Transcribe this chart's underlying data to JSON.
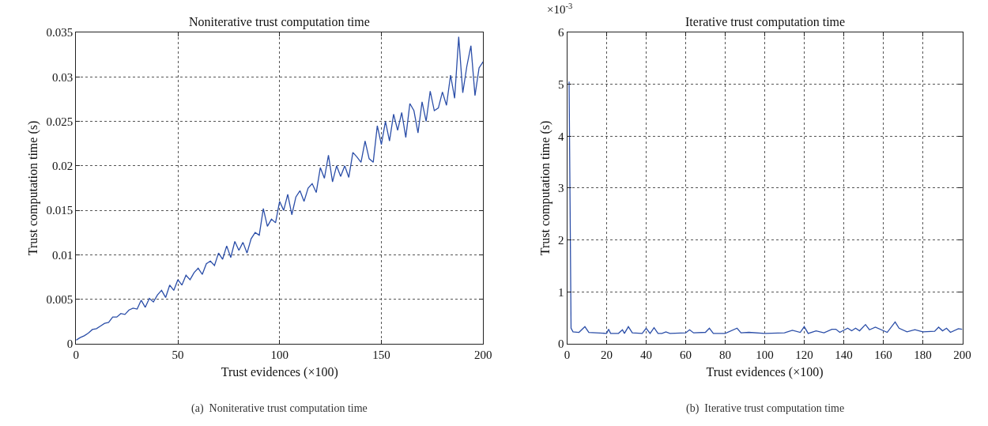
{
  "chart_data": [
    {
      "type": "line",
      "title": "Noniterative trust computation time",
      "xlabel": "Trust evidences (×100)",
      "ylabel": "Trust computation time (s)",
      "x": [
        0,
        2,
        4,
        6,
        8,
        10,
        12,
        14,
        16,
        18,
        20,
        22,
        24,
        26,
        28,
        30,
        32,
        34,
        36,
        38,
        40,
        42,
        44,
        46,
        48,
        50,
        52,
        54,
        56,
        58,
        60,
        62,
        64,
        66,
        68,
        70,
        72,
        74,
        76,
        78,
        80,
        82,
        84,
        86,
        88,
        90,
        92,
        94,
        96,
        98,
        100,
        102,
        104,
        106,
        108,
        110,
        112,
        114,
        116,
        118,
        120,
        122,
        124,
        126,
        128,
        130,
        132,
        134,
        136,
        138,
        140,
        142,
        144,
        146,
        148,
        150,
        152,
        154,
        156,
        158,
        160,
        162,
        164,
        166,
        168,
        170,
        172,
        174,
        176,
        178,
        180,
        182,
        184,
        186,
        188,
        190,
        192,
        194,
        196,
        198,
        200
      ],
      "series": [
        {
          "color": "#2b4ea8",
          "values": [
            0.0004,
            0.0007,
            0.0009,
            0.0012,
            0.0016,
            0.0017,
            0.002,
            0.0023,
            0.0024,
            0.003,
            0.003,
            0.0034,
            0.0033,
            0.0038,
            0.004,
            0.0039,
            0.0049,
            0.0041,
            0.0051,
            0.0047,
            0.0055,
            0.006,
            0.0052,
            0.0066,
            0.006,
            0.0072,
            0.0066,
            0.0077,
            0.0072,
            0.008,
            0.0085,
            0.0078,
            0.009,
            0.0093,
            0.0088,
            0.0102,
            0.0095,
            0.011,
            0.0097,
            0.0115,
            0.0105,
            0.0114,
            0.0102,
            0.0118,
            0.0125,
            0.0122,
            0.0152,
            0.0132,
            0.014,
            0.0136,
            0.016,
            0.015,
            0.0168,
            0.0145,
            0.0165,
            0.0172,
            0.016,
            0.0175,
            0.018,
            0.017,
            0.0198,
            0.0186,
            0.0212,
            0.0182,
            0.02,
            0.0188,
            0.02,
            0.0187,
            0.0215,
            0.021,
            0.0204,
            0.0228,
            0.0208,
            0.0204,
            0.0245,
            0.0224,
            0.025,
            0.0228,
            0.0258,
            0.024,
            0.026,
            0.0232,
            0.027,
            0.0262,
            0.0237,
            0.0272,
            0.025,
            0.0284,
            0.0262,
            0.0265,
            0.0283,
            0.0268,
            0.0302,
            0.0276,
            0.0345,
            0.0282,
            0.0312,
            0.0335,
            0.0279,
            0.031,
            0.0317
          ]
        }
      ],
      "xlim": [
        0,
        200
      ],
      "xticks": [
        0,
        50,
        100,
        150,
        200
      ],
      "ylim": [
        0,
        0.035
      ],
      "yticks": [
        0,
        0.005,
        0.01,
        0.015,
        0.02,
        0.025,
        0.03,
        0.035
      ],
      "grid": true,
      "marker": "none",
      "line_style": "solid",
      "annotations": [
        "(a)  Noniterative trust computation time"
      ]
    },
    {
      "type": "line",
      "title": "Iterative trust computation time",
      "xlabel": "Trust evidences (×100)",
      "ylabel": "Trust computation time (s)",
      "x": [
        1,
        2,
        3,
        6,
        9,
        11,
        20,
        21,
        22,
        26,
        28,
        29,
        31,
        33,
        38,
        40,
        42,
        44,
        46,
        48,
        50,
        52,
        60,
        62,
        64,
        70,
        72,
        74,
        80,
        86,
        88,
        92,
        100,
        110,
        114,
        118,
        120,
        122,
        126,
        130,
        134,
        136,
        138,
        142,
        144,
        146,
        148,
        151,
        153,
        156,
        162,
        166,
        168,
        172,
        176,
        180,
        186,
        188,
        190,
        192,
        194,
        198,
        200
      ],
      "series": [
        {
          "color": "#2b4ea8",
          "values": [
            5.05,
            0.3,
            0.23,
            0.22,
            0.33,
            0.22,
            0.2,
            0.28,
            0.2,
            0.2,
            0.27,
            0.2,
            0.33,
            0.21,
            0.2,
            0.3,
            0.2,
            0.31,
            0.2,
            0.2,
            0.23,
            0.2,
            0.21,
            0.27,
            0.21,
            0.22,
            0.3,
            0.2,
            0.2,
            0.3,
            0.21,
            0.22,
            0.2,
            0.21,
            0.26,
            0.22,
            0.33,
            0.2,
            0.25,
            0.21,
            0.28,
            0.28,
            0.22,
            0.3,
            0.25,
            0.3,
            0.25,
            0.37,
            0.27,
            0.32,
            0.22,
            0.42,
            0.3,
            0.23,
            0.27,
            0.23,
            0.24,
            0.32,
            0.25,
            0.3,
            0.22,
            0.29,
            0.28
          ]
        }
      ],
      "xlim": [
        0,
        200
      ],
      "xticks": [
        0,
        20,
        40,
        60,
        80,
        100,
        120,
        140,
        160,
        180,
        200
      ],
      "ylim": [
        0,
        6
      ],
      "yticks": [
        0,
        1,
        2,
        3,
        4,
        5,
        6
      ],
      "grid": true,
      "marker": "none",
      "line_style": "solid",
      "annotations": [
        "×10$^{-3}$",
        "(b)  Iterative trust computation time"
      ]
    }
  ]
}
